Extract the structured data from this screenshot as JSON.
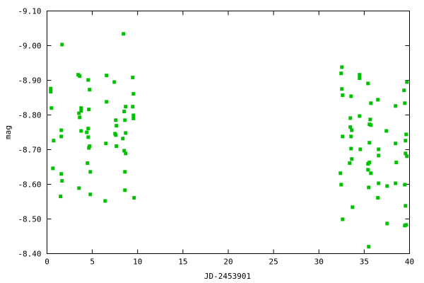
{
  "chart_data": {
    "type": "scatter",
    "title": "",
    "xlabel": "JD-2453901",
    "ylabel": "mag",
    "xlim": [
      0,
      40
    ],
    "ylim": [
      -9.1,
      -8.4
    ],
    "y_inverted": true,
    "grid": false,
    "legend": "none",
    "marker_color": "#00c000",
    "marker": "square",
    "x_ticks": [
      "0",
      "5",
      "10",
      "15",
      "20",
      "25",
      "30",
      "35",
      "40"
    ],
    "y_ticks": [
      "-9.10",
      "-9.00",
      "-8.90",
      "-8.80",
      "-8.70",
      "-8.60",
      "-8.50",
      "-8.40"
    ],
    "series": [
      {
        "x": [
          8.44,
          1.66,
          3.45,
          3.61,
          4.55,
          6.57,
          7.43,
          9.46,
          0.41,
          0.41,
          4.7,
          9.54,
          6.57,
          8.68,
          9.46,
          0.49,
          3.77,
          3.77,
          3.53,
          4.62,
          8.52,
          3.61,
          9.54,
          9.54,
          7.59,
          8.6,
          7.66,
          1.58,
          3.77,
          4.55,
          4.39,
          7.51,
          7.59,
          8.68,
          1.58,
          4.55,
          8.37,
          0.73,
          4.7,
          4.62,
          6.5,
          7.66,
          8.52,
          8.68,
          4.47,
          0.65,
          1.58,
          4.78,
          8.6,
          1.66,
          3.53,
          8.6,
          4.78,
          1.5,
          9.61,
          6.42,
          32.54,
          32.46,
          34.49,
          34.49,
          35.42,
          39.71,
          32.54,
          32.62,
          33.55,
          39.4,
          35.74,
          36.51,
          38.46,
          39.48,
          34.49,
          33.47,
          35.66,
          35.58,
          35.74,
          33.47,
          33.63,
          37.45,
          39.63,
          32.62,
          33.55,
          39.56,
          35.58,
          38.46,
          33.55,
          34.57,
          36.59,
          39.56,
          39.71,
          36.59,
          33.63,
          33.4,
          35.58,
          35.42,
          38.54,
          35.42,
          32.38,
          35.74,
          32.46,
          35.5,
          36.59,
          37.53,
          38.46,
          39.48,
          36.51,
          33.71,
          39.56,
          32.62,
          37.53,
          39.48,
          39.63,
          35.5
        ],
        "y": [
          -9.034,
          -9.003,
          -8.916,
          -8.912,
          -8.901,
          -8.914,
          -8.895,
          -8.908,
          -8.876,
          -8.867,
          -8.873,
          -8.861,
          -8.838,
          -8.824,
          -8.824,
          -8.82,
          -8.82,
          -8.812,
          -8.805,
          -8.816,
          -8.81,
          -8.793,
          -8.799,
          -8.79,
          -8.785,
          -8.785,
          -8.769,
          -8.756,
          -8.754,
          -8.761,
          -8.75,
          -8.746,
          -8.742,
          -8.748,
          -8.738,
          -8.736,
          -8.732,
          -8.726,
          -8.71,
          -8.705,
          -8.718,
          -8.71,
          -8.697,
          -8.689,
          -8.661,
          -8.646,
          -8.63,
          -8.636,
          -8.636,
          -8.61,
          -8.589,
          -8.583,
          -8.571,
          -8.565,
          -8.561,
          -8.552,
          -8.938,
          -8.92,
          -8.916,
          -8.906,
          -8.891,
          -8.895,
          -8.875,
          -8.857,
          -8.854,
          -8.871,
          -8.834,
          -8.844,
          -8.826,
          -8.834,
          -8.797,
          -8.791,
          -8.787,
          -8.773,
          -8.771,
          -8.765,
          -8.756,
          -8.754,
          -8.744,
          -8.738,
          -8.738,
          -8.726,
          -8.72,
          -8.718,
          -8.703,
          -8.701,
          -8.701,
          -8.689,
          -8.681,
          -8.683,
          -8.673,
          -8.661,
          -8.663,
          -8.659,
          -8.663,
          -8.642,
          -8.632,
          -8.632,
          -8.599,
          -8.591,
          -8.603,
          -8.595,
          -8.603,
          -8.599,
          -8.561,
          -8.534,
          -8.538,
          -8.499,
          -8.487,
          -8.481,
          -8.483,
          -8.42
        ]
      }
    ]
  }
}
